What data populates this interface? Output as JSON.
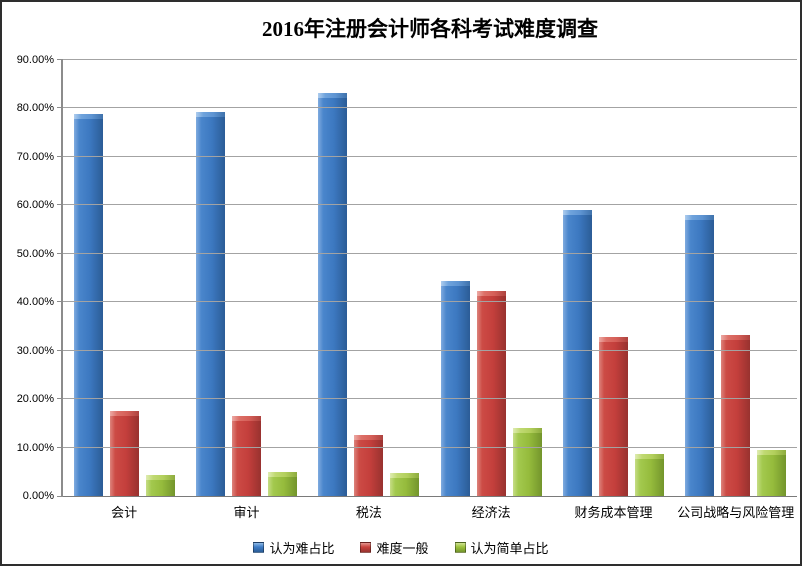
{
  "chart_data": {
    "type": "bar",
    "title": "2016年注册会计师各科考试难度调查",
    "categories": [
      "会计",
      "审计",
      "税法",
      "经济法",
      "财务成本管理",
      "公司战略与风险管理"
    ],
    "series": [
      {
        "name": "认为难占比",
        "color": "#3d7cc6",
        "values": [
          78.9,
          79.3,
          83.3,
          44.4,
          59.0,
          58.0
        ]
      },
      {
        "name": "难度一般",
        "color": "#c8423d",
        "values": [
          17.6,
          16.5,
          12.7,
          42.3,
          32.9,
          33.2
        ]
      },
      {
        "name": "认为简单占比",
        "color": "#9cc13c",
        "values": [
          4.4,
          4.9,
          4.7,
          14.1,
          8.7,
          9.6
        ]
      }
    ],
    "xlabel": "",
    "ylabel": "",
    "ylim": [
      0,
      90
    ],
    "y_tick_step": 10,
    "y_tick_labels": [
      "0.00%",
      "10.00%",
      "20.00%",
      "30.00%",
      "40.00%",
      "50.00%",
      "60.00%",
      "70.00%",
      "80.00%",
      "90.00%"
    ],
    "grid": "horizontal",
    "legend_position": "bottom",
    "plot_border_color": "#8c8c8c",
    "gridline_color": "#a3a3a3",
    "background_color": "#ffffff"
  }
}
